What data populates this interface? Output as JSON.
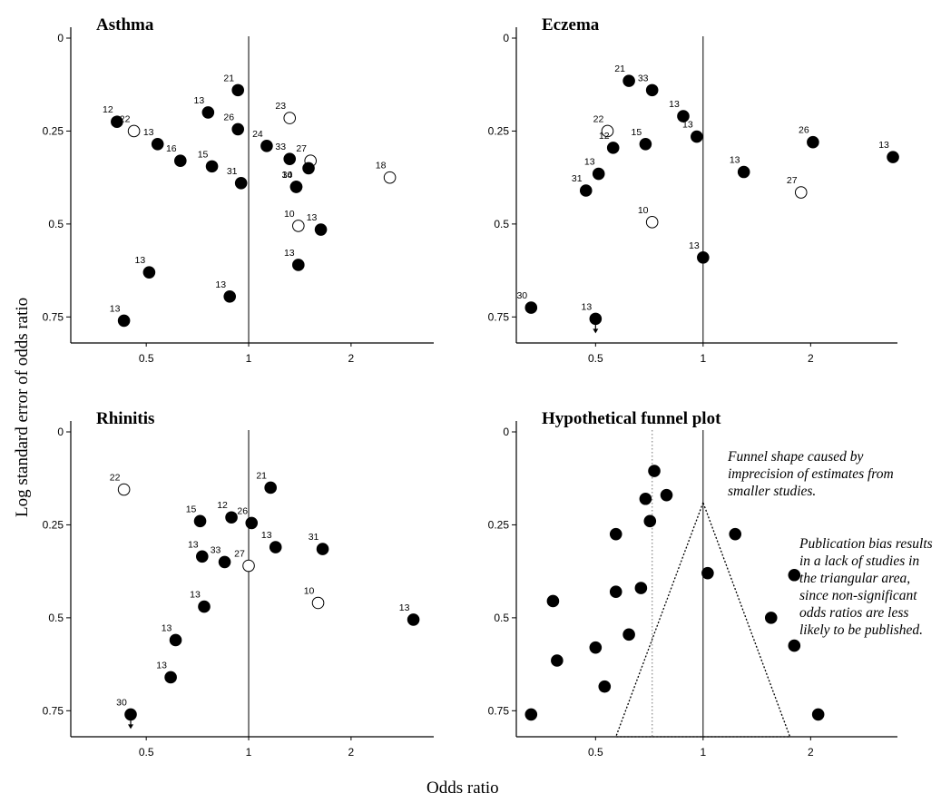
{
  "figure": {
    "ylabel": "Log standard error of odds ratio",
    "xlabel": "Odds ratio"
  },
  "chart_data": [
    {
      "id": "asthma",
      "type": "scatter",
      "title": "Asthma",
      "x_scale": "log",
      "y_inverted": true,
      "xlim": [
        0.3,
        3.5
      ],
      "ylim": [
        0,
        0.82
      ],
      "x_ticks": [
        {
          "v": 0.5,
          "label": "0.5"
        },
        {
          "v": 1,
          "label": "1"
        },
        {
          "v": 2,
          "label": "2"
        }
      ],
      "y_ticks": [
        {
          "v": 0,
          "label": "0"
        },
        {
          "v": 0.25,
          "label": "0.25"
        },
        {
          "v": 0.5,
          "label": "0.5"
        },
        {
          "v": 0.75,
          "label": "0.75"
        }
      ],
      "ref_line_x": 1,
      "points": [
        {
          "x": 0.41,
          "y": 0.225,
          "label": "12",
          "filled": true
        },
        {
          "x": 0.46,
          "y": 0.25,
          "label": "22",
          "filled": false
        },
        {
          "x": 0.54,
          "y": 0.285,
          "label": "13",
          "filled": true
        },
        {
          "x": 0.63,
          "y": 0.33,
          "label": "16",
          "filled": true
        },
        {
          "x": 0.78,
          "y": 0.345,
          "label": "15",
          "filled": true
        },
        {
          "x": 0.76,
          "y": 0.2,
          "label": "13",
          "filled": true
        },
        {
          "x": 0.93,
          "y": 0.14,
          "label": "21",
          "filled": true
        },
        {
          "x": 0.93,
          "y": 0.245,
          "label": "26",
          "filled": true
        },
        {
          "x": 0.95,
          "y": 0.39,
          "label": "31",
          "filled": true
        },
        {
          "x": 1.13,
          "y": 0.29,
          "label": "24",
          "filled": true
        },
        {
          "x": 1.32,
          "y": 0.215,
          "label": "23",
          "filled": false
        },
        {
          "x": 1.32,
          "y": 0.325,
          "label": "33",
          "filled": true
        },
        {
          "x": 1.52,
          "y": 0.33,
          "label": "27",
          "filled": false
        },
        {
          "x": 1.5,
          "y": 0.35,
          "label": "",
          "filled": true
        },
        {
          "x": 1.38,
          "y": 0.4,
          "label": "30",
          "filled": true
        },
        {
          "x": 1.38,
          "y": 0.4,
          "label": "14",
          "filled": true
        },
        {
          "x": 2.6,
          "y": 0.375,
          "label": "18",
          "filled": false
        },
        {
          "x": 1.4,
          "y": 0.505,
          "label": "10",
          "filled": false
        },
        {
          "x": 1.63,
          "y": 0.515,
          "label": "13",
          "filled": true
        },
        {
          "x": 1.4,
          "y": 0.61,
          "label": "13",
          "filled": true
        },
        {
          "x": 0.51,
          "y": 0.63,
          "label": "13",
          "filled": true
        },
        {
          "x": 0.88,
          "y": 0.695,
          "label": "13",
          "filled": true
        },
        {
          "x": 0.43,
          "y": 0.76,
          "label": "13",
          "filled": true
        }
      ]
    },
    {
      "id": "eczema",
      "type": "scatter",
      "title": "Eczema",
      "x_scale": "log",
      "y_inverted": true,
      "xlim": [
        0.3,
        3.5
      ],
      "ylim": [
        0,
        0.82
      ],
      "x_ticks": [
        {
          "v": 0.5,
          "label": "0.5"
        },
        {
          "v": 1,
          "label": "1"
        },
        {
          "v": 2,
          "label": "2"
        }
      ],
      "y_ticks": [
        {
          "v": 0,
          "label": "0"
        },
        {
          "v": 0.25,
          "label": "0.25"
        },
        {
          "v": 0.5,
          "label": "0.5"
        },
        {
          "v": 0.75,
          "label": "0.75"
        }
      ],
      "ref_line_x": 1,
      "points": [
        {
          "x": 0.62,
          "y": 0.115,
          "label": "21",
          "filled": true
        },
        {
          "x": 0.72,
          "y": 0.14,
          "label": "33",
          "filled": true
        },
        {
          "x": 0.88,
          "y": 0.21,
          "label": "13",
          "filled": true
        },
        {
          "x": 0.96,
          "y": 0.265,
          "label": "13",
          "filled": true
        },
        {
          "x": 0.54,
          "y": 0.25,
          "label": "22",
          "filled": false
        },
        {
          "x": 0.56,
          "y": 0.295,
          "label": "12",
          "filled": true
        },
        {
          "x": 0.69,
          "y": 0.285,
          "label": "15",
          "filled": true
        },
        {
          "x": 0.51,
          "y": 0.365,
          "label": "13",
          "filled": true
        },
        {
          "x": 0.47,
          "y": 0.41,
          "label": "31",
          "filled": true
        },
        {
          "x": 1.3,
          "y": 0.36,
          "label": "13",
          "filled": true
        },
        {
          "x": 2.03,
          "y": 0.28,
          "label": "26",
          "filled": true
        },
        {
          "x": 3.4,
          "y": 0.32,
          "label": "13",
          "filled": true
        },
        {
          "x": 1.88,
          "y": 0.415,
          "label": "27",
          "filled": false
        },
        {
          "x": 0.72,
          "y": 0.495,
          "label": "10",
          "filled": false
        },
        {
          "x": 1.0,
          "y": 0.59,
          "label": "13",
          "filled": true
        },
        {
          "x": 0.33,
          "y": 0.725,
          "label": "30",
          "filled": true
        },
        {
          "x": 0.5,
          "y": 0.755,
          "label": "13",
          "filled": true,
          "arrow": true
        }
      ]
    },
    {
      "id": "rhinitis",
      "type": "scatter",
      "title": "Rhinitis",
      "x_scale": "log",
      "y_inverted": true,
      "xlim": [
        0.3,
        3.5
      ],
      "ylim": [
        0,
        0.82
      ],
      "x_ticks": [
        {
          "v": 0.5,
          "label": "0.5"
        },
        {
          "v": 1,
          "label": "1"
        },
        {
          "v": 2,
          "label": "2"
        }
      ],
      "y_ticks": [
        {
          "v": 0,
          "label": "0"
        },
        {
          "v": 0.25,
          "label": "0.25"
        },
        {
          "v": 0.5,
          "label": "0.5"
        },
        {
          "v": 0.75,
          "label": "0.75"
        }
      ],
      "ref_line_x": 1,
      "points": [
        {
          "x": 0.43,
          "y": 0.155,
          "label": "22",
          "filled": false
        },
        {
          "x": 1.16,
          "y": 0.15,
          "label": "21",
          "filled": true
        },
        {
          "x": 0.72,
          "y": 0.24,
          "label": "15",
          "filled": true
        },
        {
          "x": 0.89,
          "y": 0.23,
          "label": "12",
          "filled": true
        },
        {
          "x": 1.02,
          "y": 0.245,
          "label": "26",
          "filled": true
        },
        {
          "x": 1.2,
          "y": 0.31,
          "label": "13",
          "filled": true
        },
        {
          "x": 1.65,
          "y": 0.315,
          "label": "31",
          "filled": true
        },
        {
          "x": 0.73,
          "y": 0.335,
          "label": "13",
          "filled": true
        },
        {
          "x": 0.85,
          "y": 0.35,
          "label": "33",
          "filled": true
        },
        {
          "x": 1.0,
          "y": 0.36,
          "label": "27",
          "filled": false
        },
        {
          "x": 1.6,
          "y": 0.46,
          "label": "10",
          "filled": false
        },
        {
          "x": 0.74,
          "y": 0.47,
          "label": "13",
          "filled": true
        },
        {
          "x": 3.05,
          "y": 0.505,
          "label": "13",
          "filled": true
        },
        {
          "x": 0.61,
          "y": 0.56,
          "label": "13",
          "filled": true
        },
        {
          "x": 0.59,
          "y": 0.66,
          "label": "13",
          "filled": true
        },
        {
          "x": 0.45,
          "y": 0.76,
          "label": "30",
          "filled": true,
          "arrow": true
        }
      ]
    },
    {
      "id": "funnel",
      "type": "scatter",
      "title": "Hypothetical funnel plot",
      "x_scale": "log",
      "y_inverted": true,
      "xlim": [
        0.3,
        3.5
      ],
      "ylim": [
        0,
        0.82
      ],
      "x_ticks": [
        {
          "v": 0.5,
          "label": "0.5"
        },
        {
          "v": 1,
          "label": "1"
        },
        {
          "v": 2,
          "label": "2"
        }
      ],
      "y_ticks": [
        {
          "v": 0,
          "label": "0"
        },
        {
          "v": 0.25,
          "label": "0.25"
        },
        {
          "v": 0.5,
          "label": "0.5"
        },
        {
          "v": 0.75,
          "label": "0.75"
        }
      ],
      "ref_line_x": 1,
      "dotted_line_x": 0.72,
      "triangle": {
        "apex": [
          1.0,
          0.19
        ],
        "base": [
          [
            0.57,
            0.82
          ],
          [
            1.75,
            0.82
          ]
        ]
      },
      "points": [
        {
          "x": 0.73,
          "y": 0.105,
          "filled": true
        },
        {
          "x": 0.69,
          "y": 0.18,
          "filled": true
        },
        {
          "x": 0.79,
          "y": 0.17,
          "filled": true
        },
        {
          "x": 0.71,
          "y": 0.24,
          "filled": true
        },
        {
          "x": 0.57,
          "y": 0.275,
          "filled": true
        },
        {
          "x": 1.23,
          "y": 0.275,
          "filled": true
        },
        {
          "x": 1.03,
          "y": 0.38,
          "filled": true
        },
        {
          "x": 1.8,
          "y": 0.385,
          "filled": true
        },
        {
          "x": 0.67,
          "y": 0.42,
          "filled": true
        },
        {
          "x": 0.57,
          "y": 0.43,
          "filled": true
        },
        {
          "x": 0.38,
          "y": 0.455,
          "filled": true
        },
        {
          "x": 1.55,
          "y": 0.5,
          "filled": true
        },
        {
          "x": 0.62,
          "y": 0.545,
          "filled": true
        },
        {
          "x": 0.5,
          "y": 0.58,
          "filled": true
        },
        {
          "x": 1.8,
          "y": 0.575,
          "filled": true
        },
        {
          "x": 0.39,
          "y": 0.615,
          "filled": true
        },
        {
          "x": 0.53,
          "y": 0.685,
          "filled": true
        },
        {
          "x": 0.33,
          "y": 0.76,
          "filled": true
        },
        {
          "x": 2.1,
          "y": 0.76,
          "filled": true
        }
      ],
      "annotations": [
        "Funnel shape caused by imprecision of estimates from smaller studies.",
        "Publication bias results in a lack of studies in the triangular area, since non-significant odds ratios are less likely to be published."
      ]
    }
  ]
}
